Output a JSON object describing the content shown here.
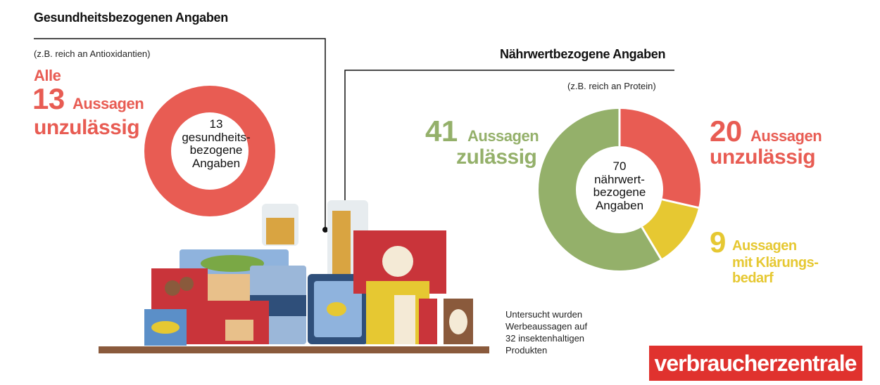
{
  "chart_data": [
    {
      "type": "pie",
      "title": "Gesundheitsbezogenen Angaben",
      "subtitle": "(z.B. reich an Antioxidantien)",
      "total": 13,
      "center_label": "gesundheits-\nbezogene\nAngaben",
      "prefix": "Alle",
      "unit": "Aussagen",
      "categories": [
        "unzulässig"
      ],
      "values": [
        13
      ],
      "colors": [
        "#e85c53"
      ]
    },
    {
      "type": "pie",
      "title": "Nährwertbezogene Angaben",
      "subtitle": "(z.B. reich an Protein)",
      "total": 70,
      "center_label": "nährwert-\nbezogene\nAngaben",
      "unit": "Aussagen",
      "categories": [
        "unzulässig",
        "mit Klärungs-\nbedarf",
        "zulässig"
      ],
      "values": [
        20,
        9,
        41
      ],
      "colors": [
        "#e85c53",
        "#e6c832",
        "#94b06a"
      ]
    }
  ],
  "note": "Untersucht wurden\nWerbeaussagen auf\n32 insektenhaltigen\nProdukten",
  "logo": "verbraucherzentrale"
}
